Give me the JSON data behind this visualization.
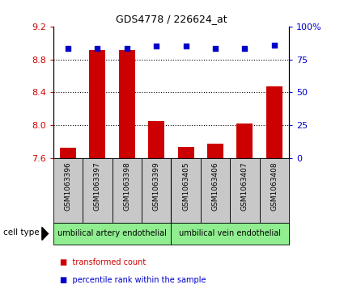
{
  "title": "GDS4778 / 226624_at",
  "samples": [
    "GSM1063396",
    "GSM1063397",
    "GSM1063398",
    "GSM1063399",
    "GSM1063405",
    "GSM1063406",
    "GSM1063407",
    "GSM1063408"
  ],
  "bar_values": [
    7.73,
    8.91,
    8.91,
    8.05,
    7.74,
    7.78,
    8.02,
    8.47
  ],
  "percentile_values": [
    83,
    83,
    83,
    85,
    85,
    83,
    83,
    86
  ],
  "cell_types": [
    {
      "label": "umbilical artery endothelial",
      "start": 0,
      "end": 4,
      "color": "#90EE90"
    },
    {
      "label": "umbilical vein endothelial",
      "start": 4,
      "end": 8,
      "color": "#90EE90"
    }
  ],
  "ylim": [
    7.6,
    9.2
  ],
  "y2lim": [
    0,
    100
  ],
  "yticks": [
    7.6,
    8.0,
    8.4,
    8.8,
    9.2
  ],
  "y2ticks": [
    0,
    25,
    50,
    75,
    100
  ],
  "bar_color": "#CC0000",
  "dot_color": "#0000CC",
  "bg_color": "#ffffff",
  "tick_label_color_left": "#CC0000",
  "tick_label_color_right": "#0000CC",
  "legend_items": [
    "transformed count",
    "percentile rank within the sample"
  ],
  "cell_type_label": "cell type",
  "grid_yticks": [
    8.0,
    8.4,
    8.8
  ]
}
